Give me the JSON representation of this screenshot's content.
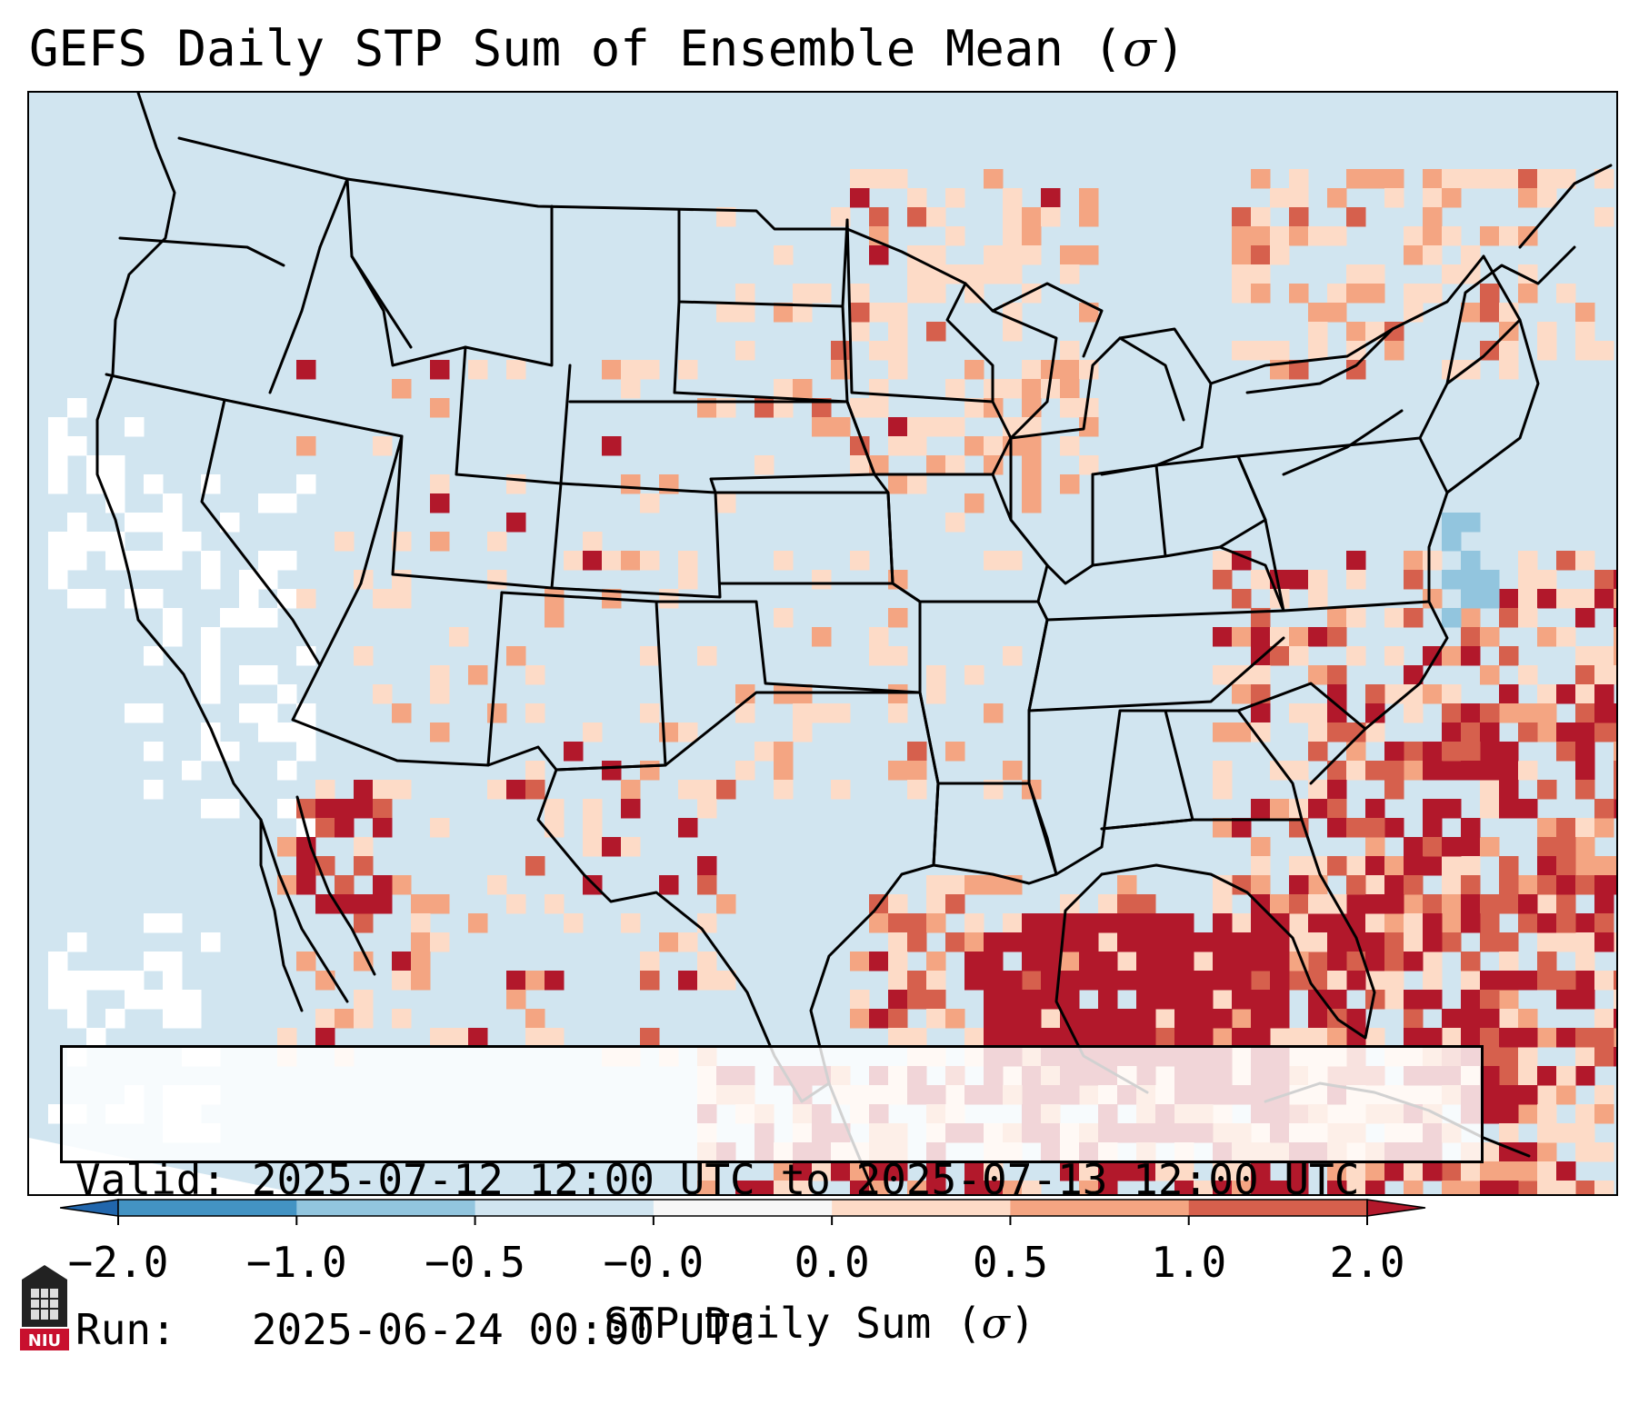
{
  "title": {
    "text": "GEFS Daily STP Sum of Ensemble Mean (",
    "symbol": "σ",
    "close": ")"
  },
  "map": {
    "region": "Contiguous United States, southern Canada, northern Mexico, Gulf of Mexico",
    "palette": {
      "below_neg1": "#4393c3",
      "neg1_to_neg05": "#92c5de",
      "neg05_to_0": "#d1e5f0",
      "near_zero": "#ffffff",
      "zero_to_05": "#fddbc7",
      "05_to_1": "#f4a582",
      "1_to_2": "#d6604d",
      "above_2": "#b2182b",
      "ocean_below": "#d1e5f0"
    }
  },
  "info": {
    "valid_line": "Valid: 2025-07-12 12:00 UTC to 2025-07-13 12:00 UTC",
    "run_line": "Run:   2025-06-24 00:00 UTC"
  },
  "colorbar": {
    "bounds": [
      -2.0,
      -1.0,
      -0.5,
      -0.0,
      0.0,
      0.5,
      1.0,
      2.0
    ],
    "tick_labels": [
      "−2.0",
      "−1.0",
      "−0.5",
      "−0.0",
      "0.0",
      "0.5",
      "1.0",
      "2.0"
    ],
    "colors": [
      "#2166ac",
      "#4393c3",
      "#92c5de",
      "#d1e5f0",
      "#f7f7f7",
      "#fddbc7",
      "#f4a582",
      "#d6604d",
      "#b2182b"
    ],
    "label_text": "STP Daily Sum (",
    "label_symbol": "σ",
    "label_close": ")"
  },
  "logo": {
    "text": "NIU",
    "color": "#c8102e"
  }
}
